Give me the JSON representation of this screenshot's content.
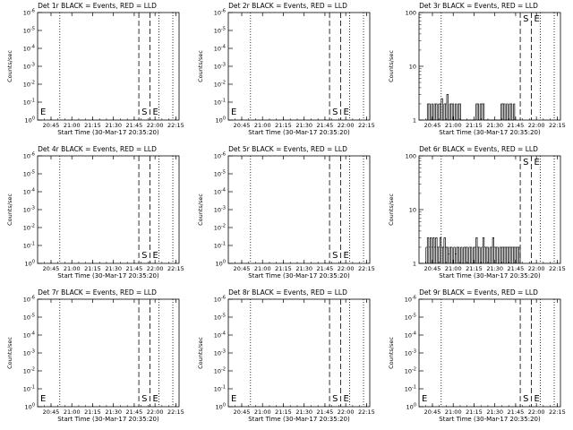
{
  "figure": {
    "background": "#ffffff",
    "ink": "#000000"
  },
  "chart_data": [
    {
      "type": "line",
      "title": "Det 1r BLACK = Events, RED = LLD",
      "xlabel": "Start Time (30-Mar-17 20:35:20)",
      "ylabel": "Counts/sec",
      "x_ticklabels": [
        "20:45",
        "21:00",
        "21:15",
        "21:30",
        "21:45",
        "22:00",
        "22:15"
      ],
      "y_ticklabels": [
        "10^0",
        "10^-1",
        "10^-2",
        "10^-3",
        "10^-4",
        "10^-5",
        "10^-6"
      ],
      "ylog": false,
      "ylim": [
        0,
        6
      ],
      "xlim_minutes": [
        0,
        102
      ],
      "markers": [
        {
          "label": "E",
          "minutes": 0
        },
        {
          "label": "S",
          "minutes": 73
        },
        {
          "label": "E",
          "minutes": 81
        }
      ],
      "dashed_lines_minutes": [
        73,
        81
      ],
      "dotted_lines_minutes": [
        16,
        87.5,
        97.5
      ],
      "series": []
    },
    {
      "type": "line",
      "title": "Det 2r BLACK = Events, RED = LLD",
      "xlabel": "Start Time (30-Mar-17 20:35:20)",
      "ylabel": "Counts/sec",
      "x_ticklabels": [
        "20:45",
        "21:00",
        "21:15",
        "21:30",
        "21:45",
        "22:00",
        "22:15"
      ],
      "y_ticklabels": [
        "10^0",
        "10^-1",
        "10^-2",
        "10^-3",
        "10^-4",
        "10^-5",
        "10^-6"
      ],
      "ylog": false,
      "ylim": [
        0,
        6
      ],
      "xlim_minutes": [
        0,
        102
      ],
      "markers": [
        {
          "label": "E",
          "minutes": 0
        },
        {
          "label": "S",
          "minutes": 73
        },
        {
          "label": "E",
          "minutes": 81
        }
      ],
      "dashed_lines_minutes": [
        73,
        81
      ],
      "dotted_lines_minutes": [
        16,
        87.5,
        97.5
      ],
      "series": []
    },
    {
      "type": "line",
      "title": "Det 3r BLACK = Events, RED = LLD",
      "xlabel": "Start Time (30-Mar-17 20:35:20)",
      "ylabel": "Counts/sec",
      "x_ticklabels": [
        "20:45",
        "21:00",
        "21:15",
        "21:30",
        "21:45",
        "22:00",
        "22:15"
      ],
      "y_ticklabels": [
        "1",
        "10",
        "100"
      ],
      "ylog": true,
      "ylim": [
        1,
        100
      ],
      "xlim_minutes": [
        0,
        102
      ],
      "markers": [
        {
          "label": "S",
          "minutes": 73
        },
        {
          "label": "E",
          "minutes": 81
        }
      ],
      "dashed_lines_minutes": [
        73,
        81
      ],
      "dotted_lines_minutes": [
        16,
        87.5,
        97.5
      ],
      "series": [
        {
          "x": [
            5,
            6,
            7,
            8,
            9,
            10,
            11,
            12,
            13,
            14,
            15,
            16,
            17,
            18,
            19,
            20,
            21,
            22,
            23,
            24,
            25,
            26,
            27,
            28,
            29,
            30,
            40,
            41,
            42,
            43,
            44,
            45,
            46,
            47,
            48,
            58,
            59,
            60,
            61,
            62,
            63,
            64,
            65,
            66,
            67,
            68,
            69
          ],
          "y": [
            1,
            2,
            2,
            1,
            2,
            1,
            2,
            2,
            1,
            2,
            2,
            2.5,
            1,
            2,
            2,
            3,
            1,
            2,
            2,
            2,
            1,
            2,
            1,
            2,
            2,
            1,
            1,
            2,
            2,
            1,
            2,
            2,
            2,
            1,
            1,
            1,
            2,
            2,
            2,
            1,
            2,
            1,
            2,
            2,
            1,
            2,
            1
          ]
        }
      ]
    },
    {
      "type": "line",
      "title": "Det 4r BLACK = Events, RED = LLD",
      "xlabel": "Start Time (30-Mar-17 20:35:20)",
      "ylabel": "Counts/sec",
      "x_ticklabels": [
        "20:45",
        "21:00",
        "21:15",
        "21:30",
        "21:45",
        "22:00",
        "22:15"
      ],
      "y_ticklabels": [
        "10^0",
        "10^-1",
        "10^-2",
        "10^-3",
        "10^-4",
        "10^-5",
        "10^-6"
      ],
      "ylog": false,
      "ylim": [
        0,
        6
      ],
      "xlim_minutes": [
        0,
        102
      ],
      "markers": [
        {
          "label": "S",
          "minutes": 73
        },
        {
          "label": "E",
          "minutes": 81
        }
      ],
      "dashed_lines_minutes": [
        73,
        81
      ],
      "dotted_lines_minutes": [
        16,
        87.5,
        97.5
      ],
      "series": []
    },
    {
      "type": "line",
      "title": "Det 5r BLACK = Events, RED = LLD",
      "xlabel": "Start Time (30-Mar-17 20:35:20)",
      "ylabel": "Counts/sec",
      "x_ticklabels": [
        "20:45",
        "21:00",
        "21:15",
        "21:30",
        "21:45",
        "22:00",
        "22:15"
      ],
      "y_ticklabels": [
        "10^0",
        "10^-1",
        "10^-2",
        "10^-3",
        "10^-4",
        "10^-5",
        "10^-6"
      ],
      "ylog": false,
      "ylim": [
        0,
        6
      ],
      "xlim_minutes": [
        0,
        102
      ],
      "markers": [
        {
          "label": "S",
          "minutes": 73
        },
        {
          "label": "E",
          "minutes": 81
        }
      ],
      "dashed_lines_minutes": [
        73,
        81
      ],
      "dotted_lines_minutes": [
        16,
        87.5,
        97.5
      ],
      "series": []
    },
    {
      "type": "line",
      "title": "Det 6r BLACK = Events, RED = LLD",
      "xlabel": "Start Time (30-Mar-17 20:35:20)",
      "ylabel": "Counts/sec",
      "x_ticklabels": [
        "20:45",
        "21:00",
        "21:15",
        "21:30",
        "21:45",
        "22:00",
        "22:15"
      ],
      "y_ticklabels": [
        "1",
        "10",
        "100"
      ],
      "ylog": true,
      "ylim": [
        1,
        100
      ],
      "xlim_minutes": [
        0,
        102
      ],
      "markers": [
        {
          "label": "S",
          "minutes": 73
        },
        {
          "label": "E",
          "minutes": 81
        }
      ],
      "dashed_lines_minutes": [
        73,
        81
      ],
      "dotted_lines_minutes": [
        16,
        87.5,
        97.5
      ],
      "series": [
        {
          "x": [
            5,
            6,
            7,
            8,
            9,
            10,
            11,
            12,
            13,
            14,
            15,
            16,
            17,
            18,
            19,
            20,
            21,
            22,
            23,
            24,
            25,
            26,
            27,
            28,
            29,
            30,
            31,
            32,
            33,
            34,
            35,
            36,
            37,
            38,
            39,
            40,
            41,
            42,
            43,
            44,
            45,
            46,
            47,
            48,
            49,
            50,
            51,
            52,
            53,
            54,
            55,
            56,
            57,
            58,
            59,
            60,
            61,
            62,
            63,
            64,
            65,
            66,
            67,
            68,
            69,
            70,
            71,
            72,
            73
          ],
          "y": [
            2,
            3,
            2,
            3,
            2,
            3,
            2,
            3,
            2,
            2,
            3,
            2,
            2,
            3,
            2,
            2,
            1.5,
            2,
            2,
            1,
            2,
            1.5,
            2,
            2,
            1,
            2,
            1,
            2,
            2,
            2,
            1,
            2,
            2,
            1,
            2,
            2,
            3,
            2,
            2,
            1,
            2,
            3,
            2,
            2,
            2,
            1,
            2,
            2,
            3,
            2,
            2,
            2,
            1,
            2,
            2,
            2,
            2,
            2,
            2,
            2,
            2,
            2,
            2,
            2,
            2,
            2,
            2,
            2,
            2
          ]
        }
      ]
    },
    {
      "type": "line",
      "title": "Det 7r BLACK = Events, RED = LLD",
      "xlabel": "Start Time (30-Mar-17 20:35:20)",
      "ylabel": "Counts/sec",
      "x_ticklabels": [
        "20:45",
        "21:00",
        "21:15",
        "21:30",
        "21:45",
        "22:00",
        "22:15"
      ],
      "y_ticklabels": [
        "10^0",
        "10^-1",
        "10^-2",
        "10^-3",
        "10^-4",
        "10^-5",
        "10^-6"
      ],
      "ylog": false,
      "ylim": [
        0,
        6
      ],
      "xlim_minutes": [
        0,
        102
      ],
      "markers": [
        {
          "label": "E",
          "minutes": 0
        },
        {
          "label": "S",
          "minutes": 73
        },
        {
          "label": "E",
          "minutes": 81
        }
      ],
      "dashed_lines_minutes": [
        73,
        81
      ],
      "dotted_lines_minutes": [
        16,
        87.5,
        97.5
      ],
      "series": []
    },
    {
      "type": "line",
      "title": "Det 8r BLACK = Events, RED = LLD",
      "xlabel": "Start Time (30-Mar-17 20:35:20)",
      "ylabel": "Counts/sec",
      "x_ticklabels": [
        "20:45",
        "21:00",
        "21:15",
        "21:30",
        "21:45",
        "22:00",
        "22:15"
      ],
      "y_ticklabels": [
        "10^0",
        "10^-1",
        "10^-2",
        "10^-3",
        "10^-4",
        "10^-5",
        "10^-6"
      ],
      "ylog": false,
      "ylim": [
        0,
        6
      ],
      "xlim_minutes": [
        0,
        102
      ],
      "markers": [
        {
          "label": "E",
          "minutes": 0
        },
        {
          "label": "S",
          "minutes": 73
        },
        {
          "label": "E",
          "minutes": 81
        }
      ],
      "dashed_lines_minutes": [
        73,
        81
      ],
      "dotted_lines_minutes": [
        16,
        87.5,
        97.5
      ],
      "series": []
    },
    {
      "type": "line",
      "title": "Det 9r BLACK = Events, RED = LLD",
      "xlabel": "Start Time (30-Mar-17 20:35:20)",
      "ylabel": "Counts/sec",
      "x_ticklabels": [
        "20:45",
        "21:00",
        "21:15",
        "21:30",
        "21:45",
        "22:00",
        "22:15"
      ],
      "y_ticklabels": [
        "10^0",
        "10^-1",
        "10^-2",
        "10^-3",
        "10^-4",
        "10^-5",
        "10^-6"
      ],
      "ylog": false,
      "ylim": [
        0,
        6
      ],
      "xlim_minutes": [
        0,
        102
      ],
      "markers": [
        {
          "label": "E",
          "minutes": 0
        },
        {
          "label": "S",
          "minutes": 73
        },
        {
          "label": "E",
          "minutes": 81
        }
      ],
      "dashed_lines_minutes": [
        73,
        81
      ],
      "dotted_lines_minutes": [
        16,
        87.5,
        97.5
      ],
      "series": []
    }
  ]
}
